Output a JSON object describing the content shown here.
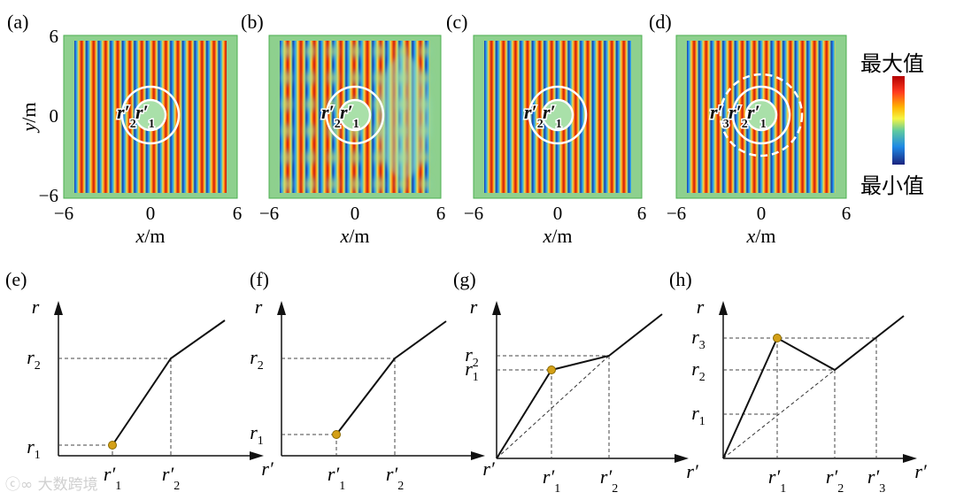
{
  "field_panels": [
    {
      "label": "(a)",
      "rings": 2,
      "dashed_outer": false,
      "marks": [
        "r′",
        "2",
        "r′",
        "1"
      ],
      "pattern": "regular"
    },
    {
      "label": "(b)",
      "rings": 2,
      "dashed_outer": false,
      "marks": [
        "r′",
        "2",
        "r′",
        "1"
      ],
      "pattern": "scattered"
    },
    {
      "label": "(c)",
      "rings": 2,
      "dashed_outer": false,
      "marks": [
        "r′",
        "2",
        "r′",
        "1"
      ],
      "pattern": "regular"
    },
    {
      "label": "(d)",
      "rings": 3,
      "dashed_outer": true,
      "marks": [
        "r′",
        "3",
        "r′",
        "2",
        "r′",
        "1"
      ],
      "pattern": "regular"
    }
  ],
  "field_axes": {
    "x_ticks": [
      "−6",
      "0",
      "6"
    ],
    "y_ticks": [
      "6",
      "0",
      "−6"
    ],
    "x_label_var": "x",
    "y_label_var": "y",
    "unit": "/m"
  },
  "colorbar": {
    "max_label": "最大值",
    "min_label": "最小值",
    "colors": [
      "#7a0000",
      "#e41a1c",
      "#ff9800",
      "#ffff33",
      "#66c2a5",
      "#1e90ff",
      "#1a237e"
    ]
  },
  "map_panels": [
    {
      "label": "(e)",
      "y_var": "r",
      "x_var": "r′",
      "y_ticks": [
        {
          "base": "r",
          "sub": "2"
        },
        {
          "base": "r",
          "sub": "1"
        }
      ],
      "x_ticks": [
        {
          "base": "r′",
          "sub": "1"
        },
        {
          "base": "r′",
          "sub": "2"
        }
      ]
    },
    {
      "label": "(f)",
      "y_var": "r",
      "x_var": "r′",
      "y_ticks": [
        {
          "base": "r",
          "sub": "2"
        },
        {
          "base": "r",
          "sub": "1"
        }
      ],
      "x_ticks": [
        {
          "base": "r′",
          "sub": "1"
        },
        {
          "base": "r′",
          "sub": "2"
        }
      ]
    },
    {
      "label": "(g)",
      "y_var": "r",
      "x_var": "r′",
      "y_ticks": [
        {
          "base": "r",
          "sub": "2"
        },
        {
          "base": "r",
          "sub": "1"
        }
      ],
      "x_ticks": [
        {
          "base": "r′",
          "sub": "1"
        },
        {
          "base": "r′",
          "sub": "2"
        }
      ]
    },
    {
      "label": "(h)",
      "y_var": "r",
      "x_var": "r′",
      "y_ticks": [
        {
          "base": "r",
          "sub": "3"
        },
        {
          "base": "r",
          "sub": "2"
        },
        {
          "base": "r",
          "sub": "1"
        }
      ],
      "x_ticks": [
        {
          "base": "r′",
          "sub": "1"
        },
        {
          "base": "r′",
          "sub": "2"
        },
        {
          "base": "r′",
          "sub": "3"
        }
      ]
    }
  ],
  "watermark": "大数跨境"
}
